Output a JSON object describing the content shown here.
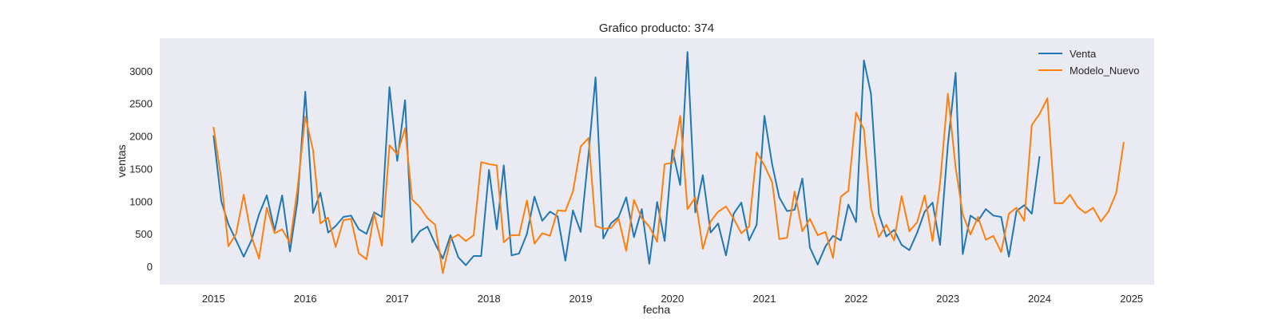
{
  "chart_data": {
    "type": "line",
    "title": "Grafico producto: 374",
    "xlabel": "fecha",
    "ylabel": "ventas",
    "x_range": [
      "2014-06-01",
      "2025-04-01"
    ],
    "ylim": [
      -280,
      3500
    ],
    "x_ticks": [
      {
        "date": "2015-01-01",
        "label": "2015"
      },
      {
        "date": "2016-01-01",
        "label": "2016"
      },
      {
        "date": "2017-01-01",
        "label": "2017"
      },
      {
        "date": "2018-01-01",
        "label": "2018"
      },
      {
        "date": "2019-01-01",
        "label": "2019"
      },
      {
        "date": "2020-01-01",
        "label": "2020"
      },
      {
        "date": "2021-01-01",
        "label": "2021"
      },
      {
        "date": "2022-01-01",
        "label": "2022"
      },
      {
        "date": "2023-01-01",
        "label": "2023"
      },
      {
        "date": "2024-01-01",
        "label": "2024"
      },
      {
        "date": "2025-01-01",
        "label": "2025"
      }
    ],
    "y_ticks": [
      {
        "value": 0,
        "label": "0"
      },
      {
        "value": 500,
        "label": "500"
      },
      {
        "value": 1000,
        "label": "1000"
      },
      {
        "value": 1500,
        "label": "1500"
      },
      {
        "value": 2000,
        "label": "2000"
      },
      {
        "value": 2500,
        "label": "2500"
      },
      {
        "value": 3000,
        "label": "3000"
      }
    ],
    "grid": false,
    "legend_position": "top-right",
    "background_color": "#eaeaf2",
    "series": [
      {
        "name": "Venta",
        "color": "#1f77b4",
        "start": "2015-01",
        "values": [
          2010,
          1000,
          650,
          400,
          150,
          400,
          800,
          1090,
          550,
          1090,
          230,
          1000,
          2680,
          820,
          1130,
          520,
          620,
          760,
          780,
          570,
          500,
          830,
          760,
          2750,
          1620,
          2550,
          370,
          540,
          610,
          350,
          120,
          480,
          140,
          20,
          160,
          160,
          1480,
          570,
          1550,
          170,
          200,
          500,
          1070,
          700,
          840,
          770,
          90,
          860,
          530,
          1720,
          2900,
          430,
          660,
          760,
          1060,
          450,
          880,
          40,
          990,
          390,
          1790,
          1250,
          3290,
          830,
          1400,
          520,
          660,
          170,
          810,
          980,
          400,
          640,
          2310,
          1560,
          1060,
          850,
          870,
          1350,
          290,
          30,
          310,
          470,
          400,
          950,
          680,
          3160,
          2650,
          810,
          460,
          560,
          330,
          250,
          520,
          840,
          980,
          330,
          1870,
          2970,
          190,
          780,
          700,
          880,
          780,
          760,
          150,
          850,
          940,
          810,
          1690
        ]
      },
      {
        "name": "Modelo_Nuevo",
        "color": "#ff7f0e",
        "start": "2015-01",
        "values": [
          2140,
          1330,
          310,
          500,
          1100,
          460,
          120,
          900,
          510,
          570,
          360,
          1190,
          2300,
          1790,
          660,
          750,
          300,
          710,
          730,
          200,
          110,
          810,
          320,
          1860,
          1720,
          2120,
          1030,
          910,
          740,
          640,
          -100,
          420,
          490,
          390,
          480,
          1600,
          1570,
          1550,
          370,
          480,
          480,
          1010,
          350,
          510,
          470,
          860,
          850,
          1150,
          1840,
          1970,
          620,
          580,
          590,
          730,
          240,
          1020,
          740,
          610,
          380,
          1570,
          1590,
          2310,
          880,
          1060,
          270,
          690,
          840,
          920,
          730,
          510,
          610,
          1750,
          1550,
          1290,
          420,
          440,
          1150,
          540,
          730,
          480,
          530,
          130,
          1070,
          1160,
          2360,
          2100,
          900,
          450,
          640,
          400,
          1080,
          540,
          680,
          1090,
          390,
          1280,
          2650,
          1520,
          800,
          490,
          760,
          410,
          470,
          220,
          810,
          900,
          700,
          2170,
          2340,
          2580,
          970,
          970,
          1100,
          910,
          820,
          900,
          690,
          840,
          1130,
          1910
        ]
      }
    ]
  }
}
